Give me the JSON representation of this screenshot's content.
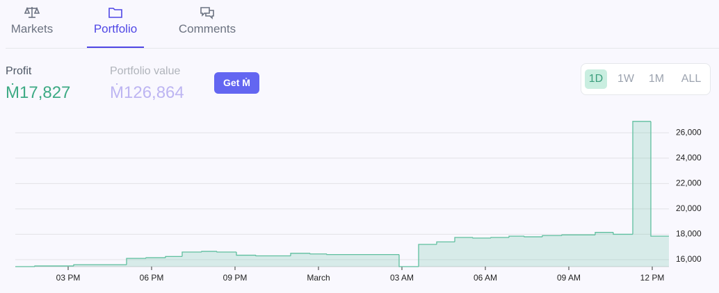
{
  "tabs": [
    {
      "label": "Markets"
    },
    {
      "label": "Portfolio",
      "active": true
    },
    {
      "label": "Comments"
    }
  ],
  "stats": {
    "profit_label": "Profit",
    "profit_value": "Ṁ17,827",
    "portfolio_label": "Portfolio value",
    "portfolio_value": "Ṁ126,864",
    "button": "Get Ṁ"
  },
  "ranges": [
    {
      "label": "1D",
      "active": true
    },
    {
      "label": "1W"
    },
    {
      "label": "1M"
    },
    {
      "label": "ALL"
    }
  ],
  "chart_data": {
    "type": "step-area",
    "color": "#5fbf9f",
    "x": [
      13.1,
      13.8,
      15.2,
      17.1,
      17.8,
      18.5,
      19.1,
      19.8,
      20.35,
      21.05,
      21.75,
      23.0,
      23.7,
      24.3,
      26.9,
      27.6,
      28.25,
      28.9,
      29.55,
      30.2,
      30.85,
      31.4,
      32.05,
      32.75,
      33.3,
      33.95,
      34.6,
      35.3,
      35.95
    ],
    "values": [
      15450,
      15500,
      15600,
      16100,
      16150,
      16250,
      16600,
      16650,
      16600,
      16350,
      16300,
      16500,
      16450,
      16400,
      15450,
      17200,
      17400,
      17750,
      17700,
      17750,
      17850,
      17800,
      17900,
      17950,
      17950,
      18150,
      18000,
      26900,
      17850
    ],
    "xlim": [
      13.1,
      36.6
    ],
    "ylim": [
      15450,
      27000
    ],
    "xticks": [
      {
        "value": 15,
        "label": "03 PM"
      },
      {
        "value": 18,
        "label": "06 PM"
      },
      {
        "value": 21,
        "label": "09 PM"
      },
      {
        "value": 24,
        "label": "March"
      },
      {
        "value": 27,
        "label": "03 AM"
      },
      {
        "value": 30,
        "label": "06 AM"
      },
      {
        "value": 33,
        "label": "09 AM"
      },
      {
        "value": 36,
        "label": "12 PM"
      }
    ],
    "yticks": [
      {
        "value": 16000,
        "label": "16,000"
      },
      {
        "value": 18000,
        "label": "18,000"
      },
      {
        "value": 20000,
        "label": "20,000"
      },
      {
        "value": 22000,
        "label": "22,000"
      },
      {
        "value": 24000,
        "label": "24,000"
      },
      {
        "value": 26000,
        "label": "26,000"
      }
    ],
    "grid": true
  }
}
